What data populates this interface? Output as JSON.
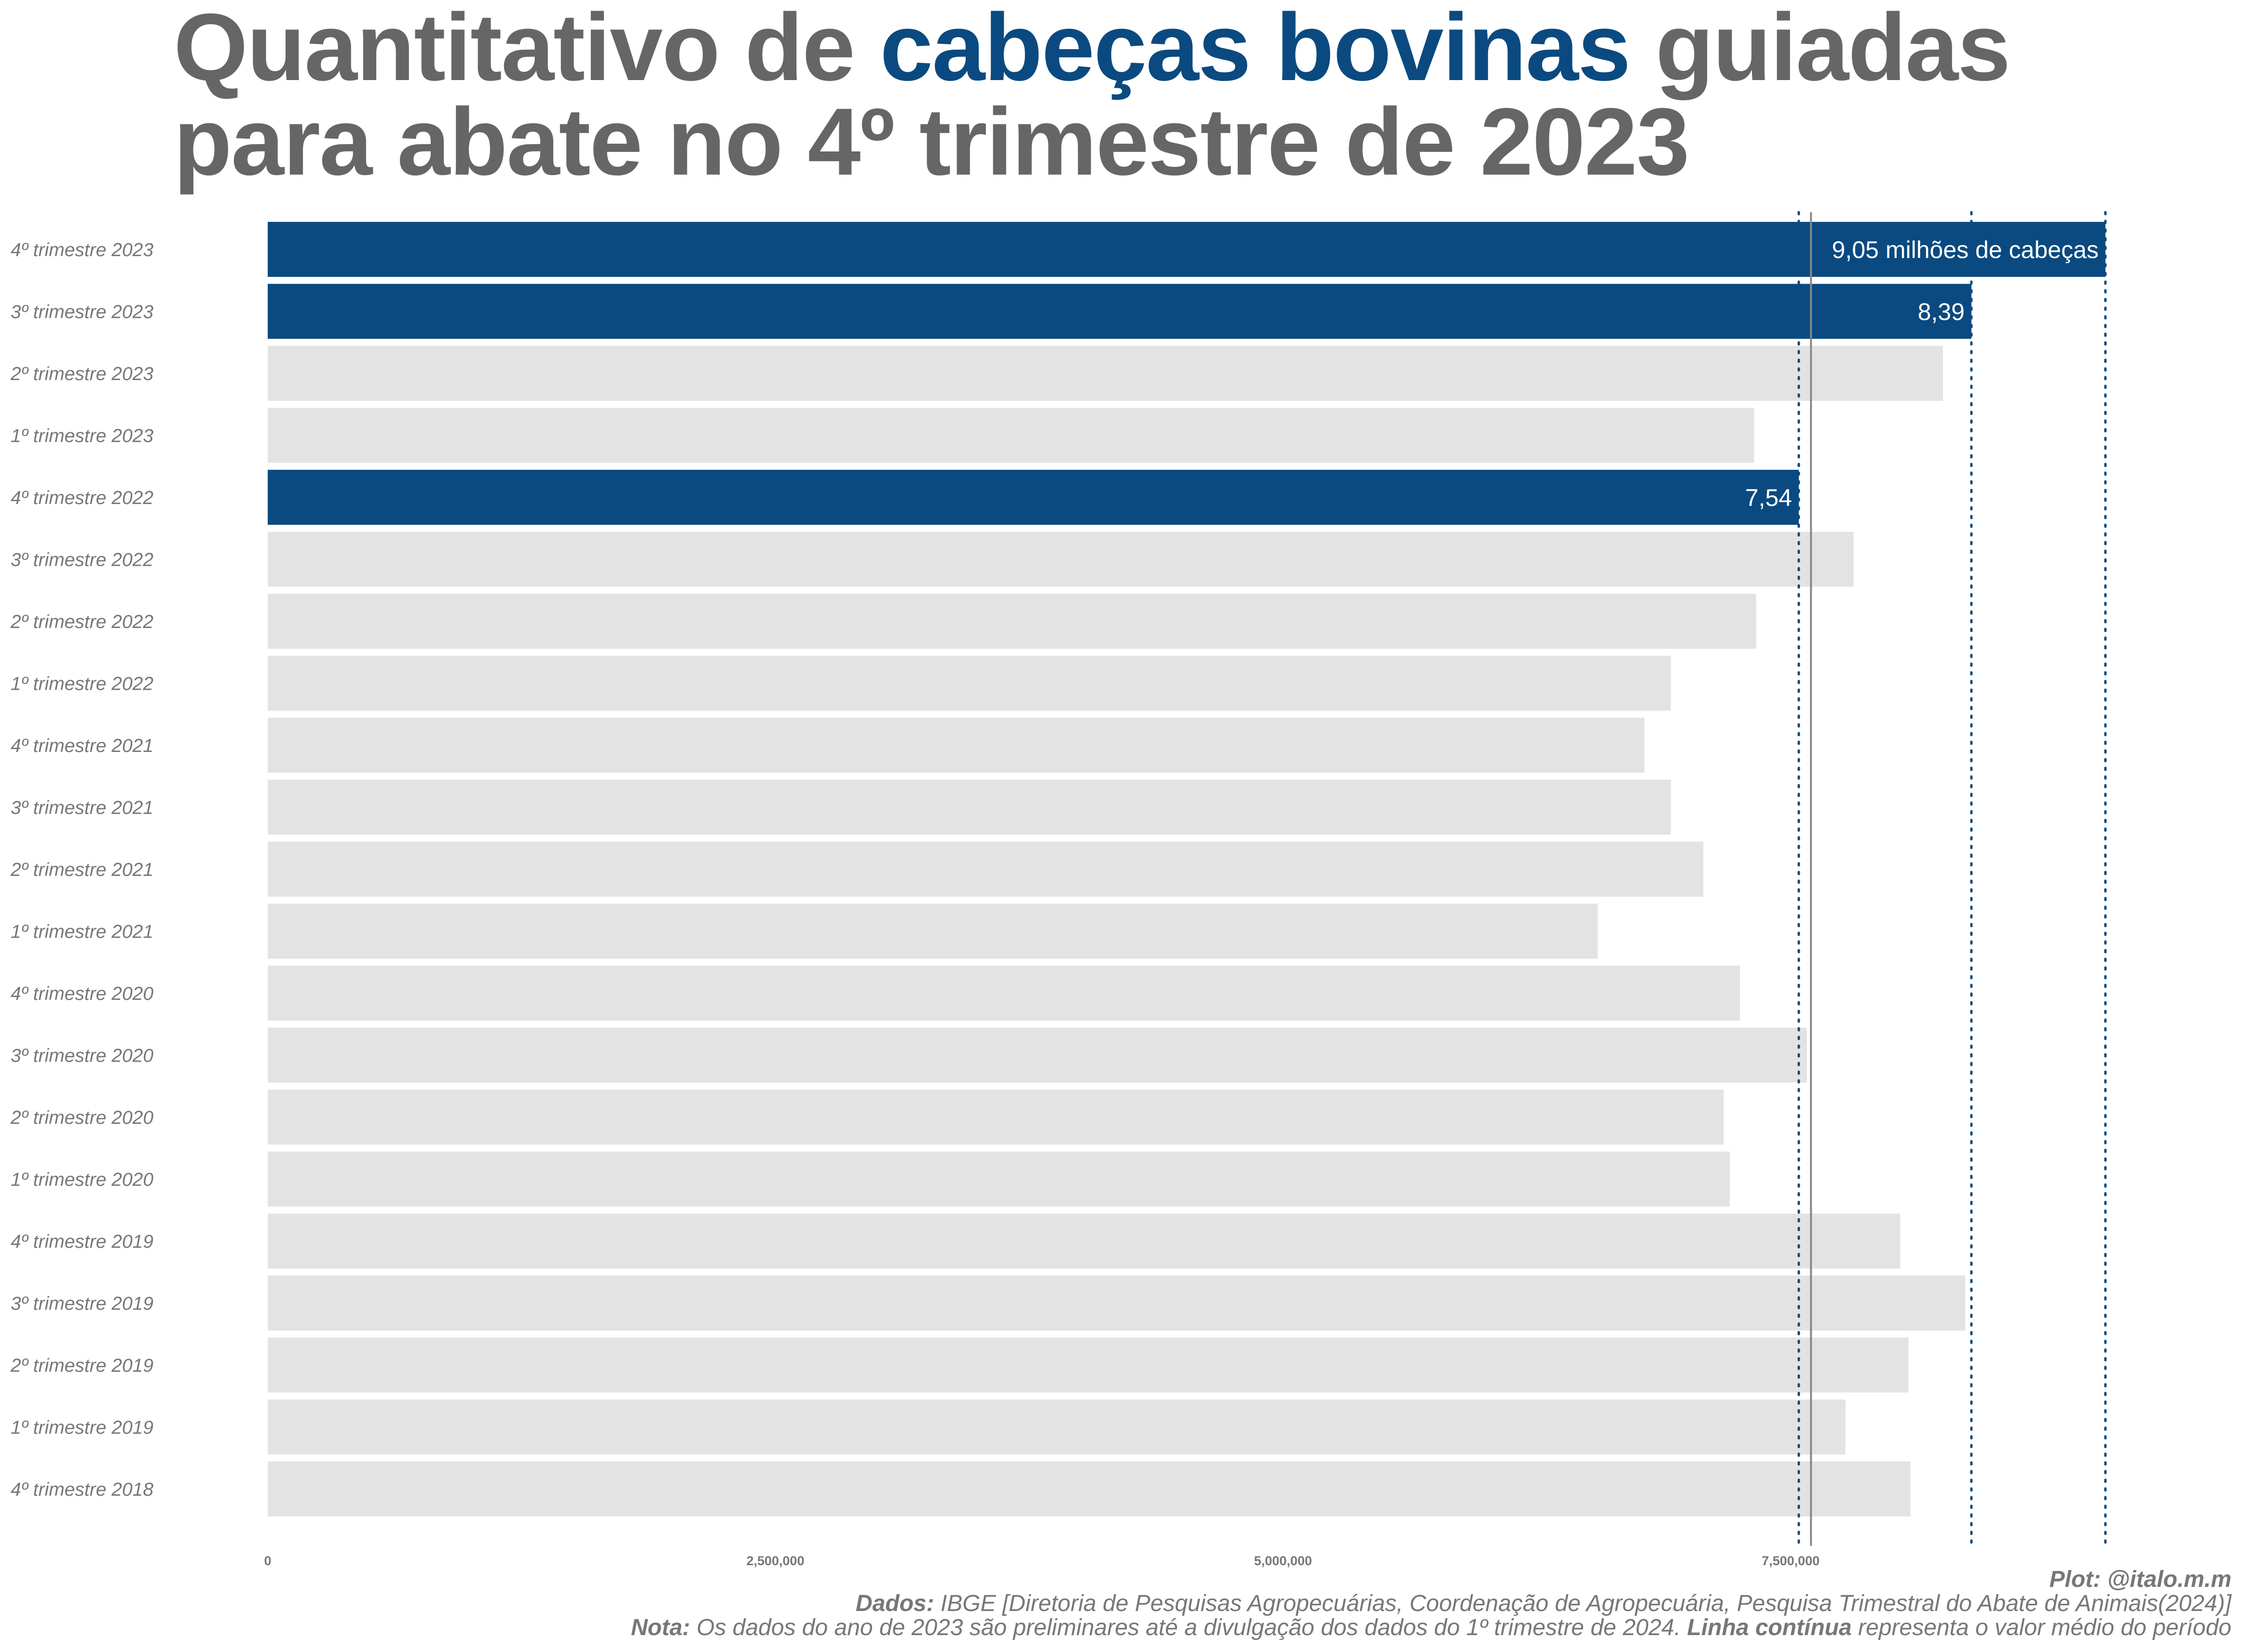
{
  "title": {
    "part1": "Quantitativo de ",
    "highlight": "cabeças bovinas",
    "part2": " guiadas",
    "line2": "para abate no 4º trimestre de 2023"
  },
  "colors": {
    "highlight": "#0a4a80",
    "base_bar": "#e3e3e3",
    "title_text": "#666666",
    "axis_text": "#777777",
    "mean_line": "#888888",
    "reference_line": "#0a4a80"
  },
  "chart_data": {
    "type": "bar",
    "orientation": "horizontal",
    "categories": [
      "4º trimestre 2023",
      "3º trimestre 2023",
      "2º trimestre 2023",
      "1º trimestre 2023",
      "4º trimestre 2022",
      "3º trimestre 2022",
      "2º trimestre 2022",
      "1º trimestre 2022",
      "4º trimestre 2021",
      "3º trimestre 2021",
      "2º trimestre 2021",
      "1º trimestre 2021",
      "4º trimestre 2020",
      "3º trimestre 2020",
      "2º trimestre 2020",
      "1º trimestre 2020",
      "4º trimestre 2019",
      "3º trimestre 2019",
      "2º trimestre 2019",
      "1º trimestre 2019",
      "4º trimestre 2018"
    ],
    "values": [
      9050000,
      8390000,
      8250000,
      7320000,
      7540000,
      7810000,
      7330000,
      6910000,
      6780000,
      6910000,
      7070000,
      6550000,
      7250000,
      7580000,
      7170000,
      7200000,
      8040000,
      8360000,
      8080000,
      7770000,
      8090000
    ],
    "highlighted": [
      true,
      true,
      false,
      false,
      true,
      false,
      false,
      false,
      false,
      false,
      false,
      false,
      false,
      false,
      false,
      false,
      false,
      false,
      false,
      false,
      false
    ],
    "value_labels": [
      "9,05 milhões de cabeças",
      "8,39",
      "",
      "",
      "7,54",
      "",
      "",
      "",
      "",
      "",
      "",
      "",
      "",
      "",
      "",
      "",
      "",
      "",
      "",
      "",
      ""
    ],
    "xlim": [
      0,
      9300000
    ],
    "x_ticks": [
      0,
      2500000,
      5000000,
      7500000
    ],
    "x_tick_labels": [
      "0",
      "2,500,000",
      "5,000,000",
      "7,500,000"
    ],
    "mean_value": 7600000,
    "reference_values": [
      9050000,
      8390000,
      7540000
    ],
    "xlabel": "",
    "ylabel": "",
    "grid": false,
    "legend": "none"
  },
  "captions": {
    "plot_label": "Plot:",
    "plot_value": "  @italo.m.m",
    "data_label": "Dados:",
    "data_value": " IBGE [Diretoria de Pesquisas Agropecuárias, Coordenação de Agropecuária, Pesquisa Trimestral do Abate de Animais(2024)]",
    "note_label": "Nota:",
    "note_value": " Os dados do ano de 2023 são preliminares até a divulgação dos dados do 1º trimestre de 2024. ",
    "note_bold": "Linha contínua",
    "note_tail": " representa o valor médio do período"
  }
}
